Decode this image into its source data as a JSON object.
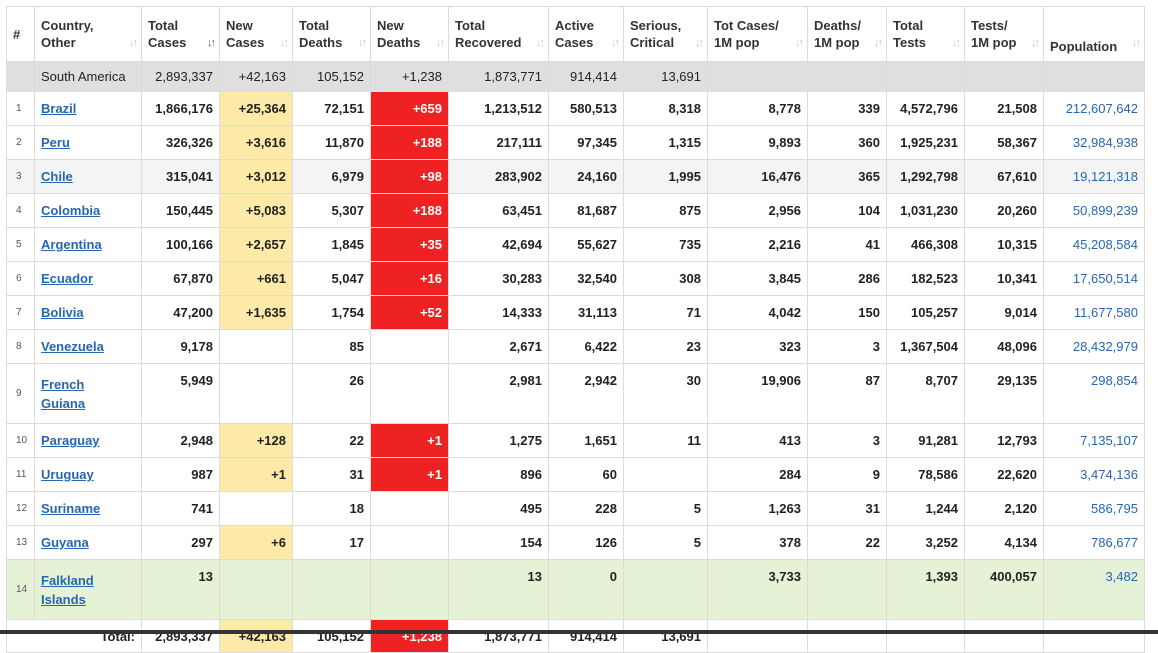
{
  "headers": [
    {
      "key": "idx",
      "line1": "#",
      "line2": "",
      "sort": false
    },
    {
      "key": "country",
      "line1": "Country,",
      "line2": "Other",
      "sort": true
    },
    {
      "key": "total_cases",
      "line1": "Total",
      "line2": "Cases",
      "sort": true,
      "active": true
    },
    {
      "key": "new_cases",
      "line1": "New",
      "line2": "Cases",
      "sort": true
    },
    {
      "key": "total_deaths",
      "line1": "Total",
      "line2": "Deaths",
      "sort": true
    },
    {
      "key": "new_deaths",
      "line1": "New",
      "line2": "Deaths",
      "sort": true
    },
    {
      "key": "total_recovered",
      "line1": "Total",
      "line2": "Recovered",
      "sort": true
    },
    {
      "key": "active_cases",
      "line1": "Active",
      "line2": "Cases",
      "sort": true
    },
    {
      "key": "serious",
      "line1": "Serious,",
      "line2": "Critical",
      "sort": true
    },
    {
      "key": "cases_1m",
      "line1": "Tot Cases/",
      "line2": "1M pop",
      "sort": true
    },
    {
      "key": "deaths_1m",
      "line1": "Deaths/",
      "line2": "1M pop",
      "sort": true
    },
    {
      "key": "total_tests",
      "line1": "Total",
      "line2": "Tests",
      "sort": true
    },
    {
      "key": "tests_1m",
      "line1": "Tests/",
      "line2": "1M pop",
      "sort": true
    },
    {
      "key": "population",
      "line1": "Population",
      "line2": "",
      "sort": true
    }
  ],
  "sort_icons": {
    "inactive": "↓↑",
    "active": "↓↑"
  },
  "region_row": {
    "country": "South America",
    "total_cases": "2,893,337",
    "new_cases": "+42,163",
    "total_deaths": "105,152",
    "new_deaths": "+1,238",
    "total_recovered": "1,873,771",
    "active_cases": "914,414",
    "serious": "13,691",
    "cases_1m": "",
    "deaths_1m": "",
    "total_tests": "",
    "tests_1m": "",
    "population": ""
  },
  "rows": [
    {
      "idx": "1",
      "country": "Brazil",
      "total_cases": "1,866,176",
      "new_cases": "+25,364",
      "total_deaths": "72,151",
      "new_deaths": "+659",
      "total_recovered": "1,213,512",
      "active_cases": "580,513",
      "serious": "8,318",
      "cases_1m": "8,778",
      "deaths_1m": "339",
      "total_tests": "4,572,796",
      "tests_1m": "21,508",
      "population": "212,607,642"
    },
    {
      "idx": "2",
      "country": "Peru",
      "total_cases": "326,326",
      "new_cases": "+3,616",
      "total_deaths": "11,870",
      "new_deaths": "+188",
      "total_recovered": "217,111",
      "active_cases": "97,345",
      "serious": "1,315",
      "cases_1m": "9,893",
      "deaths_1m": "360",
      "total_tests": "1,925,231",
      "tests_1m": "58,367",
      "population": "32,984,938"
    },
    {
      "idx": "3",
      "country": "Chile",
      "total_cases": "315,041",
      "new_cases": "+3,012",
      "total_deaths": "6,979",
      "new_deaths": "+98",
      "total_recovered": "283,902",
      "active_cases": "24,160",
      "serious": "1,995",
      "cases_1m": "16,476",
      "deaths_1m": "365",
      "total_tests": "1,292,798",
      "tests_1m": "67,610",
      "population": "19,121,318"
    },
    {
      "idx": "4",
      "country": "Colombia",
      "total_cases": "150,445",
      "new_cases": "+5,083",
      "total_deaths": "5,307",
      "new_deaths": "+188",
      "total_recovered": "63,451",
      "active_cases": "81,687",
      "serious": "875",
      "cases_1m": "2,956",
      "deaths_1m": "104",
      "total_tests": "1,031,230",
      "tests_1m": "20,260",
      "population": "50,899,239"
    },
    {
      "idx": "5",
      "country": "Argentina",
      "total_cases": "100,166",
      "new_cases": "+2,657",
      "total_deaths": "1,845",
      "new_deaths": "+35",
      "total_recovered": "42,694",
      "active_cases": "55,627",
      "serious": "735",
      "cases_1m": "2,216",
      "deaths_1m": "41",
      "total_tests": "466,308",
      "tests_1m": "10,315",
      "population": "45,208,584"
    },
    {
      "idx": "6",
      "country": "Ecuador",
      "total_cases": "67,870",
      "new_cases": "+661",
      "total_deaths": "5,047",
      "new_deaths": "+16",
      "total_recovered": "30,283",
      "active_cases": "32,540",
      "serious": "308",
      "cases_1m": "3,845",
      "deaths_1m": "286",
      "total_tests": "182,523",
      "tests_1m": "10,341",
      "population": "17,650,514"
    },
    {
      "idx": "7",
      "country": "Bolivia",
      "total_cases": "47,200",
      "new_cases": "+1,635",
      "total_deaths": "1,754",
      "new_deaths": "+52",
      "total_recovered": "14,333",
      "active_cases": "31,113",
      "serious": "71",
      "cases_1m": "4,042",
      "deaths_1m": "150",
      "total_tests": "105,257",
      "tests_1m": "9,014",
      "population": "11,677,580"
    },
    {
      "idx": "8",
      "country": "Venezuela",
      "total_cases": "9,178",
      "new_cases": "",
      "total_deaths": "85",
      "new_deaths": "",
      "total_recovered": "2,671",
      "active_cases": "6,422",
      "serious": "23",
      "cases_1m": "323",
      "deaths_1m": "3",
      "total_tests": "1,367,504",
      "tests_1m": "48,096",
      "population": "28,432,979"
    },
    {
      "idx": "9",
      "country_line1": "French",
      "country_line2": "Guiana",
      "total_cases": "5,949",
      "new_cases": "",
      "total_deaths": "26",
      "new_deaths": "",
      "total_recovered": "2,981",
      "active_cases": "2,942",
      "serious": "30",
      "cases_1m": "19,906",
      "deaths_1m": "87",
      "total_tests": "8,707",
      "tests_1m": "29,135",
      "population": "298,854"
    },
    {
      "idx": "10",
      "country": "Paraguay",
      "total_cases": "2,948",
      "new_cases": "+128",
      "total_deaths": "22",
      "new_deaths": "+1",
      "total_recovered": "1,275",
      "active_cases": "1,651",
      "serious": "11",
      "cases_1m": "413",
      "deaths_1m": "3",
      "total_tests": "91,281",
      "tests_1m": "12,793",
      "population": "7,135,107"
    },
    {
      "idx": "11",
      "country": "Uruguay",
      "total_cases": "987",
      "new_cases": "+1",
      "total_deaths": "31",
      "new_deaths": "+1",
      "total_recovered": "896",
      "active_cases": "60",
      "serious": "",
      "cases_1m": "284",
      "deaths_1m": "9",
      "total_tests": "78,586",
      "tests_1m": "22,620",
      "population": "3,474,136"
    },
    {
      "idx": "12",
      "country": "Suriname",
      "total_cases": "741",
      "new_cases": "",
      "total_deaths": "18",
      "new_deaths": "",
      "total_recovered": "495",
      "active_cases": "228",
      "serious": "5",
      "cases_1m": "1,263",
      "deaths_1m": "31",
      "total_tests": "1,244",
      "tests_1m": "2,120",
      "population": "586,795"
    },
    {
      "idx": "13",
      "country": "Guyana",
      "total_cases": "297",
      "new_cases": "+6",
      "total_deaths": "17",
      "new_deaths": "",
      "total_recovered": "154",
      "active_cases": "126",
      "serious": "5",
      "cases_1m": "378",
      "deaths_1m": "22",
      "total_tests": "3,252",
      "tests_1m": "4,134",
      "population": "786,677"
    },
    {
      "idx": "14",
      "country_line1": "Falkland",
      "country_line2": "Islands",
      "total_cases": "13",
      "new_cases": "",
      "total_deaths": "",
      "new_deaths": "",
      "total_recovered": "13",
      "active_cases": "0",
      "serious": "",
      "cases_1m": "3,733",
      "deaths_1m": "",
      "total_tests": "1,393",
      "tests_1m": "400,057",
      "population": "3,482"
    }
  ],
  "total_row": {
    "label": "Total:",
    "total_cases": "2,893,337",
    "new_cases": "+42,163",
    "total_deaths": "105,152",
    "new_deaths": "+1,238",
    "total_recovered": "1,873,771",
    "active_cases": "914,414",
    "serious": "13,691"
  },
  "colors": {
    "new_cases_bg": "#fdeaa8",
    "new_deaths_bg": "#ee2222",
    "link": "#2766b0",
    "region_bg": "#dfdfdf",
    "falkland_bg": "#e6f2d6"
  }
}
